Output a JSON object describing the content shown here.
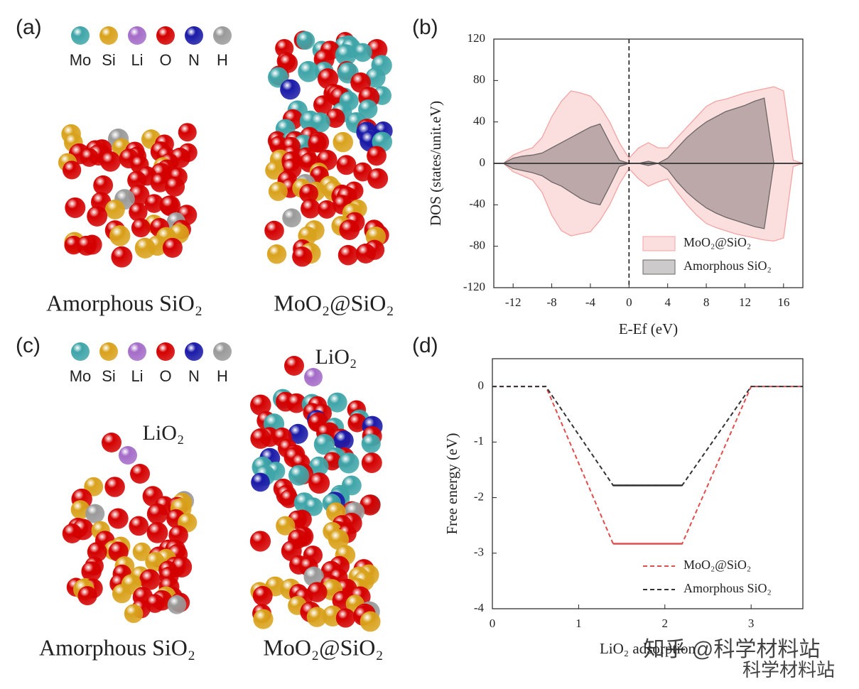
{
  "panel_labels": [
    "(a)",
    "(b)",
    "(c)",
    "(d)"
  ],
  "structures": [
    {
      "legend": [
        {
          "label": "Mo",
          "color": "#3fa5a8"
        },
        {
          "label": "Si",
          "color": "#d9a21c"
        },
        {
          "label": "Li",
          "color": "#a46cc8"
        },
        {
          "label": "O",
          "color": "#d40000"
        },
        {
          "label": "N",
          "color": "#1a1aa8"
        },
        {
          "label": "H",
          "color": "#9a9a9a"
        }
      ],
      "labels": [
        "Amorphous SiO₂",
        "MoO₂@SiO₂"
      ]
    },
    {
      "legend": [
        {
          "label": "Mo",
          "color": "#3fa5a8"
        },
        {
          "label": "Si",
          "color": "#d9a21c"
        },
        {
          "label": "Li",
          "color": "#a46cc8"
        },
        {
          "label": "O",
          "color": "#d40000"
        },
        {
          "label": "N",
          "color": "#1a1aa8"
        },
        {
          "label": "H",
          "color": "#9a9a9a"
        }
      ],
      "labels": [
        "Amorphous SiO₂",
        "MoO₂@SiO₂"
      ],
      "adsorbate_labels": [
        "LiO₂",
        "LiO₂"
      ]
    }
  ],
  "chart_data": [
    {
      "type": "area",
      "xlabel": "E-Ef (eV)",
      "ylabel": "DOS (states/unit.eV)",
      "x": [
        -14,
        -13,
        -12,
        -11,
        -10,
        -9,
        -8,
        -7,
        -6,
        -5,
        -4,
        -3,
        -2,
        -1,
        0,
        1,
        2,
        3,
        4,
        5,
        6,
        7,
        8,
        9,
        10,
        11,
        12,
        13,
        14,
        15,
        16,
        17,
        18
      ],
      "xlim": [
        -14,
        18
      ],
      "xticks": [
        -12,
        -8,
        -4,
        0,
        4,
        8,
        12,
        16
      ],
      "ylim": [
        -120,
        120
      ],
      "yticks": [
        -120,
        -80,
        -40,
        0,
        40,
        80,
        120
      ],
      "legend": "lower right",
      "series": [
        {
          "name": "MoO₂@SiO₂",
          "color": "#f4a3a3",
          "values": [
            0,
            0,
            8,
            12,
            15,
            25,
            45,
            60,
            70,
            68,
            65,
            55,
            40,
            20,
            5,
            15,
            20,
            15,
            15,
            25,
            35,
            45,
            55,
            60,
            62,
            65,
            68,
            70,
            72,
            74,
            70,
            3,
            0
          ],
          "values_down": [
            0,
            0,
            -8,
            -12,
            -16,
            -28,
            -50,
            -65,
            -70,
            -68,
            -66,
            -55,
            -40,
            -20,
            -5,
            -15,
            -22,
            -18,
            -15,
            -28,
            -40,
            -50,
            -58,
            -62,
            -65,
            -68,
            -70,
            -72,
            -74,
            -75,
            -72,
            -3,
            0
          ]
        },
        {
          "name": "Amorphous SiO₂",
          "color": "#6e6666",
          "values": [
            0,
            0,
            5,
            7,
            8,
            10,
            15,
            20,
            25,
            30,
            35,
            38,
            20,
            3,
            0,
            0,
            2,
            0,
            5,
            15,
            25,
            33,
            40,
            45,
            50,
            53,
            56,
            60,
            63,
            0,
            0,
            0,
            0
          ],
          "values_down": [
            0,
            0,
            -5,
            -7,
            -9,
            -12,
            -18,
            -22,
            -28,
            -34,
            -38,
            -40,
            -22,
            -3,
            0,
            0,
            -2,
            0,
            -6,
            -18,
            -28,
            -36,
            -43,
            -48,
            -52,
            -55,
            -58,
            -61,
            -63,
            0,
            0,
            0,
            0
          ]
        }
      ]
    },
    {
      "type": "line",
      "xlabel": "LiO₂ adsorption",
      "ylabel": "Free energy (eV)",
      "x": [
        0,
        0.62,
        1.4,
        2.2,
        3,
        3.6
      ],
      "xlim": [
        0,
        3.6
      ],
      "xticks": [
        0,
        1,
        2,
        3
      ],
      "ylim": [
        -4,
        0.5
      ],
      "yticks": [
        -4,
        -3,
        -2,
        -1,
        0
      ],
      "legend": "lower right",
      "series": [
        {
          "name": "MoO₂@SiO₂",
          "color": "#e34d4d",
          "values": [
            0,
            0,
            -2.83,
            -2.83,
            0,
            0
          ]
        },
        {
          "name": "Amorphous SiO₂",
          "color": "#333333",
          "values": [
            0,
            0,
            -1.78,
            -1.78,
            0,
            0
          ]
        }
      ]
    }
  ],
  "watermark": [
    "知乎 @科学材料站",
    "科学材料站"
  ]
}
